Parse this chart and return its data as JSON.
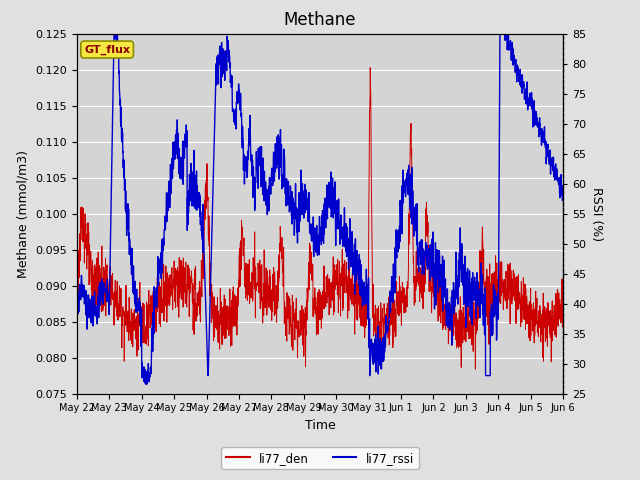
{
  "title": "Methane",
  "ylabel_left": "Methane (mmol/m3)",
  "ylabel_right": "RSSI (%)",
  "xlabel": "Time",
  "ylim_left": [
    0.075,
    0.125
  ],
  "ylim_right": [
    25,
    85
  ],
  "yticks_left": [
    0.075,
    0.08,
    0.085,
    0.09,
    0.095,
    0.1,
    0.105,
    0.11,
    0.115,
    0.12,
    0.125
  ],
  "yticks_right": [
    25,
    30,
    35,
    40,
    45,
    50,
    55,
    60,
    65,
    70,
    75,
    80,
    85
  ],
  "xtick_labels": [
    "May 22",
    "May 23",
    "May 24",
    "May 25",
    "May 26",
    "May 27",
    "May 28",
    "May 29",
    "May 30",
    "May 31",
    "Jun 1",
    "Jun 2",
    "Jun 3",
    "Jun 4",
    "Jun 5",
    "Jun 6"
  ],
  "color_red": "#cc0000",
  "color_blue": "#0000cc",
  "legend_label_red": "li77_den",
  "legend_label_blue": "li77_rssi",
  "gt_flux_label": "GT_flux",
  "fig_bg_color": "#e0e0e0",
  "plot_bg_color": "#d4d4d4",
  "grid_color": "#ffffff",
  "title_fontsize": 12,
  "axis_label_fontsize": 9,
  "tick_fontsize": 8
}
